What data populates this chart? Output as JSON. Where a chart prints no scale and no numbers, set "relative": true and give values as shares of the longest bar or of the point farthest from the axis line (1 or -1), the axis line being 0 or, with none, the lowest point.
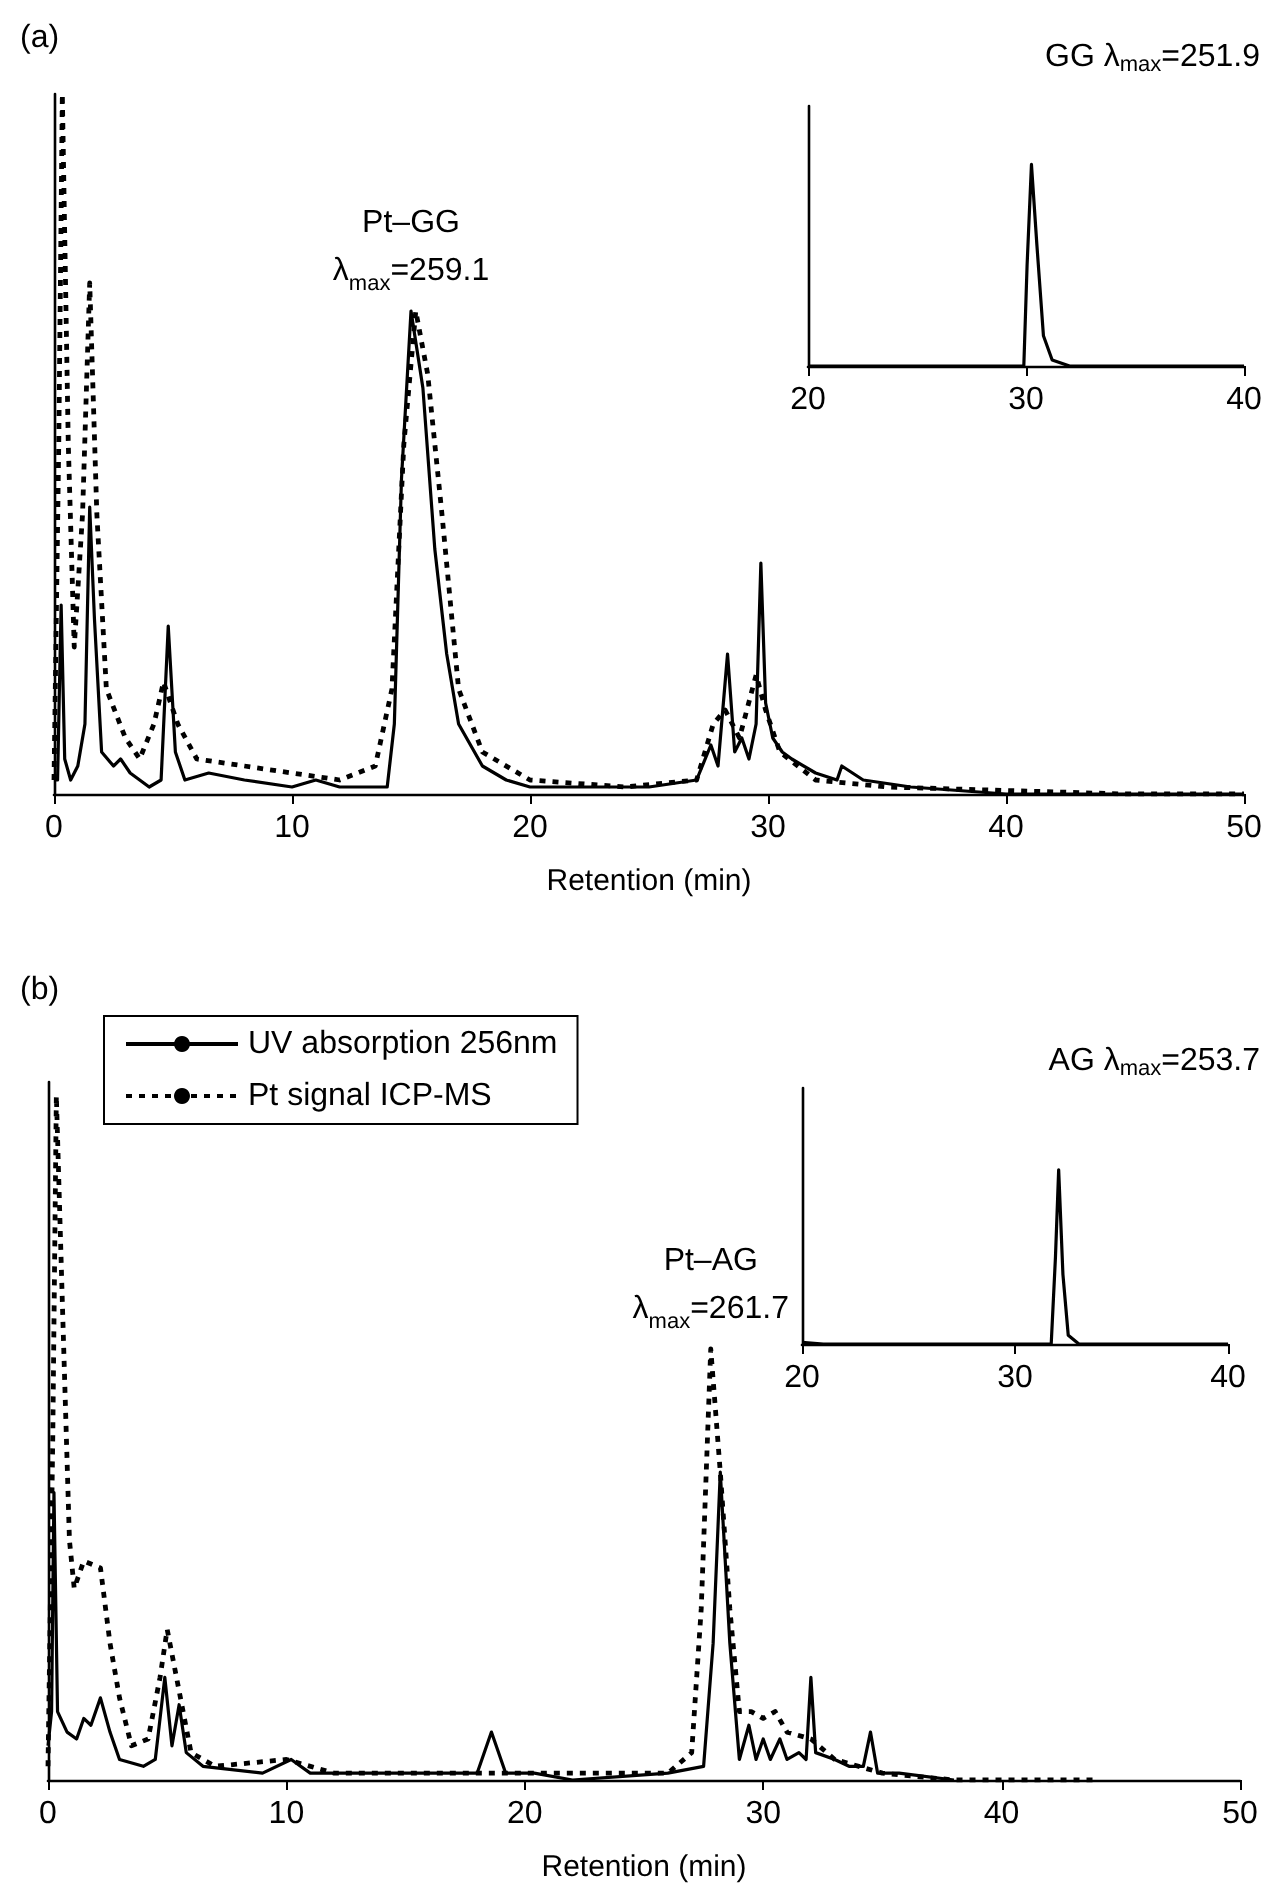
{
  "chart_data": [
    {
      "type": "line",
      "title": "(a)",
      "xlabel": "Retention (min)",
      "relative": true,
      "xlim": [
        0,
        50
      ],
      "xticks": [
        0,
        10,
        20,
        30,
        40,
        50
      ],
      "marker": "none",
      "annotations": [
        {
          "text": "Pt–GG\nλ$_{max}$=259.1",
          "x": 15,
          "y": 0.69
        }
      ],
      "series": [
        {
          "color": "#000000",
          "line_style": "solid",
          "x": [
            0,
            0.15,
            0.3,
            0.45,
            0.7,
            1.0,
            1.3,
            1.5,
            1.7,
            2.0,
            2.5,
            2.8,
            3.2,
            4.0,
            4.5,
            4.8,
            5.1,
            5.5,
            6.5,
            8,
            10,
            11,
            12,
            13,
            14,
            14.3,
            14.6,
            15,
            15.5,
            16,
            16.5,
            17,
            18,
            19,
            20,
            22,
            25,
            27,
            27.6,
            27.9,
            28.3,
            28.6,
            28.9,
            29.2,
            29.5,
            29.7,
            29.9,
            30.2,
            30.6,
            31,
            32,
            32.9,
            33.1,
            34,
            36,
            40,
            45,
            50
          ],
          "values": [
            0.02,
            0.02,
            0.27,
            0.05,
            0.02,
            0.04,
            0.1,
            0.41,
            0.25,
            0.06,
            0.04,
            0.05,
            0.03,
            0.01,
            0.02,
            0.24,
            0.06,
            0.02,
            0.03,
            0.02,
            0.01,
            0.02,
            0.01,
            0.01,
            0.01,
            0.1,
            0.45,
            0.69,
            0.58,
            0.35,
            0.2,
            0.1,
            0.04,
            0.02,
            0.01,
            0.01,
            0.01,
            0.02,
            0.07,
            0.04,
            0.2,
            0.06,
            0.08,
            0.05,
            0.1,
            0.33,
            0.13,
            0.08,
            0.06,
            0.05,
            0.03,
            0.02,
            0.04,
            0.02,
            0.01,
            0,
            0,
            0
          ]
        },
        {
          "color": "#000000",
          "line_style": "dotted",
          "x": [
            0,
            0.2,
            0.35,
            0.6,
            0.85,
            1.2,
            1.5,
            1.8,
            2.2,
            3,
            3.6,
            4.2,
            4.6,
            5.2,
            6,
            8,
            10,
            12,
            13.5,
            14.2,
            14.7,
            15.2,
            15.7,
            16.3,
            17,
            18,
            20,
            24,
            27,
            27.7,
            28.2,
            28.8,
            29.5,
            29.9,
            30.5,
            32,
            35,
            45,
            50
          ],
          "values": [
            0.02,
            0.5,
            1,
            0.5,
            0.21,
            0.4,
            0.73,
            0.4,
            0.15,
            0.08,
            0.05,
            0.1,
            0.16,
            0.1,
            0.05,
            0.04,
            0.03,
            0.02,
            0.04,
            0.15,
            0.5,
            0.69,
            0.6,
            0.4,
            0.15,
            0.06,
            0.02,
            0.01,
            0.02,
            0.1,
            0.12,
            0.08,
            0.17,
            0.12,
            0.06,
            0.02,
            0.01,
            0,
            0
          ]
        }
      ]
    },
    {
      "type": "line",
      "title": "GG λ$_{max}$=251.9",
      "relative": true,
      "xlim": [
        20,
        40
      ],
      "xticks": [
        20,
        30,
        40
      ],
      "marker": "none",
      "series": [
        {
          "color": "#000000",
          "line_style": "solid",
          "x": [
            20,
            29.9,
            30.05,
            30.25,
            30.5,
            30.8,
            31.2,
            32,
            40
          ],
          "values": [
            0,
            0,
            0.5,
            1,
            0.6,
            0.15,
            0.03,
            0,
            0
          ]
        }
      ]
    },
    {
      "type": "line",
      "title": "(b)",
      "xlabel": "Retention (min)",
      "relative": true,
      "xlim": [
        0,
        50
      ],
      "xticks": [
        0,
        10,
        20,
        30,
        40,
        50
      ],
      "marker": "none",
      "legend": "top left",
      "annotations": [
        {
          "text": "Pt–AG\nλ$_{max}$=261.7",
          "x": 27.8,
          "y": 0.63
        }
      ],
      "series": [
        {
          "name": "UV absorption 256nm",
          "color": "#000000",
          "line_style": "solid",
          "x": [
            0,
            0.15,
            0.25,
            0.4,
            0.8,
            1.2,
            1.5,
            1.8,
            2.2,
            2.6,
            3,
            4,
            4.5,
            4.9,
            5.2,
            5.5,
            5.8,
            6.5,
            9,
            10.2,
            11,
            15,
            18,
            18.6,
            19.2,
            20.4,
            22,
            26,
            27.5,
            27.9,
            28.2,
            28.6,
            29,
            29.4,
            29.7,
            30,
            30.3,
            30.7,
            31,
            31.5,
            31.8,
            32,
            32.2,
            33,
            33.6,
            34.2,
            34.5,
            34.8,
            35.7,
            38
          ],
          "values": [
            0.05,
            0.1,
            0.42,
            0.1,
            0.07,
            0.06,
            0.09,
            0.08,
            0.12,
            0.07,
            0.03,
            0.02,
            0.03,
            0.15,
            0.05,
            0.11,
            0.04,
            0.02,
            0.01,
            0.03,
            0.01,
            0.01,
            0.01,
            0.07,
            0.01,
            0.01,
            0,
            0.01,
            0.02,
            0.2,
            0.45,
            0.2,
            0.03,
            0.08,
            0.03,
            0.06,
            0.03,
            0.06,
            0.03,
            0.04,
            0.03,
            0.15,
            0.04,
            0.03,
            0.02,
            0.02,
            0.07,
            0.01,
            0.01,
            0
          ]
        },
        {
          "name": "Pt signal ICP-MS",
          "color": "#000000",
          "line_style": "dotted",
          "x": [
            0,
            0.2,
            0.35,
            0.6,
            0.9,
            1.1,
            1.5,
            2.2,
            2.6,
            3,
            3.5,
            4.2,
            4.7,
            5,
            5.5,
            6,
            7,
            10,
            12,
            18,
            22,
            26,
            27,
            27.4,
            27.8,
            28.2,
            28.6,
            29,
            29.5,
            30,
            30.5,
            31,
            32,
            33,
            35,
            38,
            44
          ],
          "values": [
            0.02,
            0.5,
            1,
            0.7,
            0.35,
            0.28,
            0.32,
            0.31,
            0.2,
            0.12,
            0.05,
            0.06,
            0.15,
            0.22,
            0.13,
            0.04,
            0.02,
            0.03,
            0.01,
            0.01,
            0.01,
            0.01,
            0.04,
            0.25,
            0.63,
            0.45,
            0.25,
            0.1,
            0.1,
            0.09,
            0.1,
            0.07,
            0.06,
            0.03,
            0.01,
            0,
            0
          ]
        }
      ]
    },
    {
      "type": "line",
      "title": "AG λ$_{max}$=253.7",
      "relative": true,
      "xlim": [
        20,
        40
      ],
      "xticks": [
        20,
        30,
        40
      ],
      "marker": "none",
      "series": [
        {
          "color": "#000000",
          "line_style": "solid",
          "x": [
            20,
            21,
            31.7,
            31.9,
            32.05,
            32.25,
            32.5,
            33,
            40
          ],
          "values": [
            0.01,
            0,
            0,
            0.5,
            1,
            0.4,
            0.05,
            0,
            0
          ]
        }
      ]
    }
  ]
}
